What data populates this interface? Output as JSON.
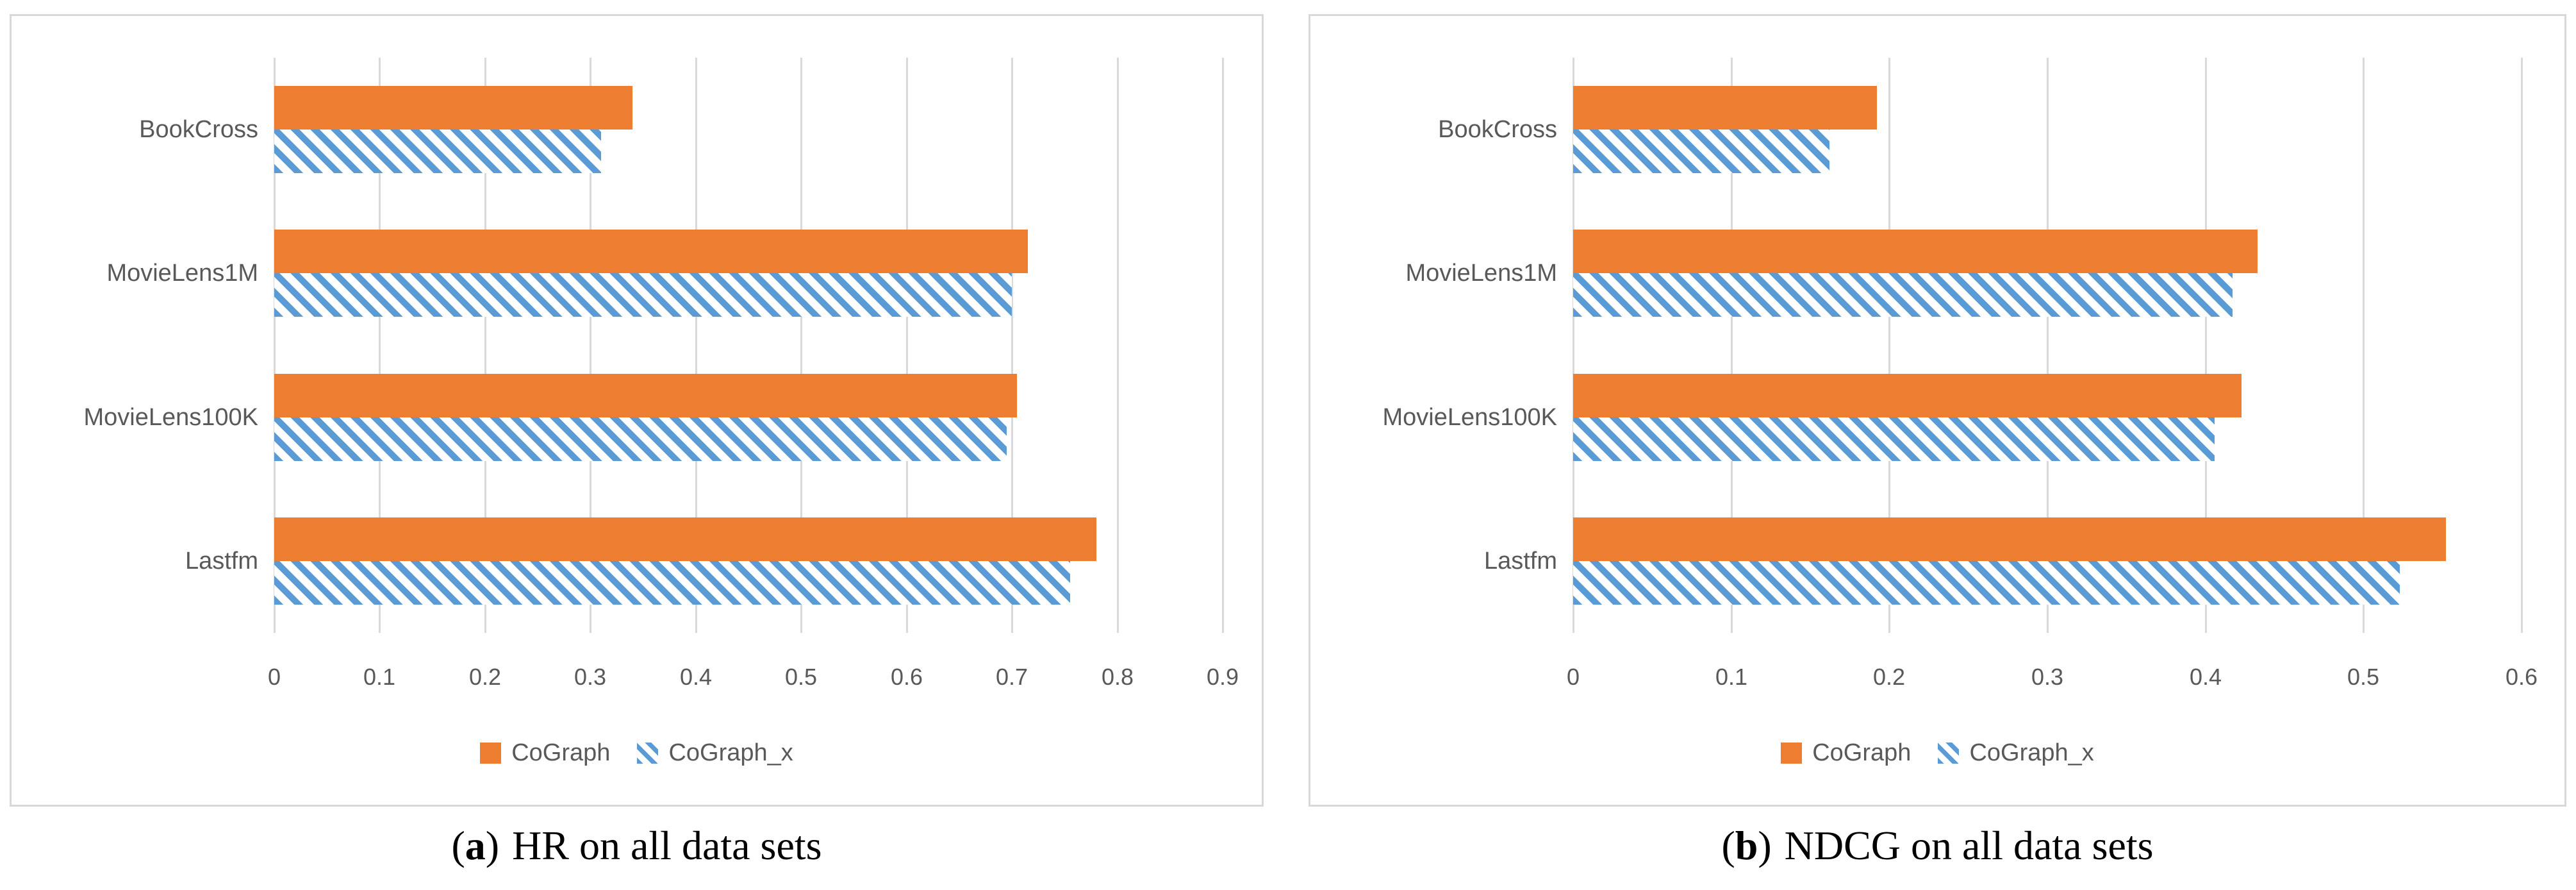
{
  "figure": {
    "captions": [
      {
        "prefix": "(",
        "marker": "a",
        "suffix": ")",
        "text": "HR on all data sets"
      },
      {
        "prefix": "(",
        "marker": "b",
        "suffix": ")",
        "text": "NDCG on all data sets"
      }
    ]
  },
  "theme": {
    "cograph_color": "#ED7D31",
    "cograph_x_color": "#5B9BD5",
    "gridline_color": "#D9D9D9",
    "panel_border_color": "#D8D8D8",
    "axis_text_color": "#595959",
    "caption_text_color": "#000000",
    "background": "#FFFFFF"
  },
  "chart_data": [
    {
      "type": "bar",
      "orientation": "horizontal",
      "caption": "(a) HR on all data sets",
      "categories": [
        "BookCross",
        "MovieLens1M",
        "MovieLens100K",
        "Lastfm"
      ],
      "series": [
        {
          "name": "CoGraph",
          "style": "solid",
          "values": [
            0.34,
            0.715,
            0.705,
            0.78
          ]
        },
        {
          "name": "CoGraph_x",
          "style": "hatched",
          "values": [
            0.31,
            0.7,
            0.695,
            0.755
          ]
        }
      ],
      "xlim": [
        0,
        0.9
      ],
      "xtick_labels": [
        "0",
        "0.1",
        "0.2",
        "0.3",
        "0.4",
        "0.5",
        "0.6",
        "0.7",
        "0.8",
        "0.9"
      ],
      "grid": true,
      "legend_position": "bottom"
    },
    {
      "type": "bar",
      "orientation": "horizontal",
      "caption": "(b) NDCG on all data sets",
      "categories": [
        "BookCross",
        "MovieLens1M",
        "MovieLens100K",
        "Lastfm"
      ],
      "series": [
        {
          "name": "CoGraph",
          "style": "solid",
          "values": [
            0.192,
            0.433,
            0.423,
            0.552
          ]
        },
        {
          "name": "CoGraph_x",
          "style": "hatched",
          "values": [
            0.162,
            0.417,
            0.406,
            0.523
          ]
        }
      ],
      "xlim": [
        0,
        0.6
      ],
      "xtick_labels": [
        "0",
        "0.1",
        "0.2",
        "0.3",
        "0.4",
        "0.5",
        "0.6"
      ],
      "grid": true,
      "legend_position": "bottom"
    }
  ]
}
